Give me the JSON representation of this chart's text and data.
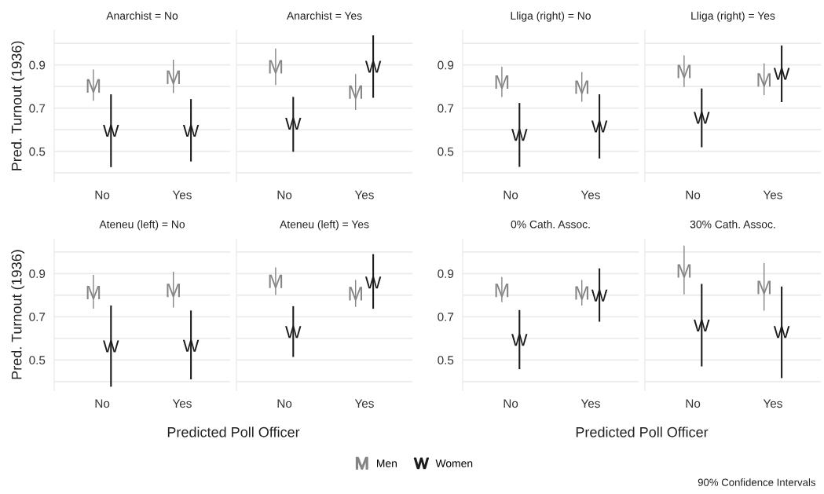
{
  "chart_data": [
    {
      "type": "scatter",
      "title": "Anarchist = No",
      "ylabel": "Pred. Turnout (1936)",
      "categories": [
        "No",
        "Yes"
      ],
      "ylim": [
        0.36,
        1.06
      ],
      "yticks": [
        {
          "value": 0.4,
          "label": null
        },
        0.5,
        {
          "value": 0.6,
          "label": null
        },
        0.7,
        {
          "value": 0.8,
          "label": null
        },
        0.9,
        {
          "value": 1.0,
          "label": null
        }
      ],
      "grid": "y",
      "legend": "bottom",
      "series": [
        {
          "name": "Men",
          "color": "#858585",
          "values": [
            0.803,
            0.843
          ],
          "errors": [
            [
              0.734,
              0.879
            ],
            [
              0.77,
              0.924
            ]
          ]
        },
        {
          "name": "Women",
          "color": "#1c1c1c",
          "values": [
            0.595,
            0.595
          ],
          "errors": [
            [
              0.427,
              0.764
            ],
            [
              0.453,
              0.742
            ]
          ]
        }
      ]
    },
    {
      "type": "scatter",
      "title": "Anarchist = Yes",
      "categories": [
        "No",
        "Yes"
      ],
      "ylim": [
        0.36,
        1.06
      ],
      "yticks": [
        {
          "value": 0.4,
          "label": null
        },
        0.5,
        {
          "value": 0.6,
          "label": null
        },
        0.7,
        {
          "value": 0.8,
          "label": null
        },
        0.9,
        {
          "value": 1.0,
          "label": null
        }
      ],
      "grid": "y",
      "tick_labels": "x",
      "series": [
        {
          "name": "Men",
          "color": "#858585",
          "values": [
            0.892,
            0.774
          ],
          "errors": [
            [
              0.807,
              0.976
            ],
            [
              0.692,
              0.858
            ]
          ]
        },
        {
          "name": "Women",
          "color": "#1c1c1c",
          "values": [
            0.628,
            0.892
          ],
          "errors": [
            [
              0.498,
              0.752
            ],
            [
              0.748,
              1.037
            ]
          ]
        }
      ]
    },
    {
      "type": "scatter",
      "title": "Lliga (right) = No",
      "categories": [
        "No",
        "Yes"
      ],
      "ylim": [
        0.36,
        1.06
      ],
      "yticks": [
        {
          "value": 0.4,
          "label": null
        },
        0.5,
        {
          "value": 0.6,
          "label": null
        },
        0.7,
        {
          "value": 0.8,
          "label": null
        },
        0.9,
        {
          "value": 1.0,
          "label": null
        }
      ],
      "grid": "y",
      "series": [
        {
          "name": "Men",
          "color": "#858585",
          "values": [
            0.821,
            0.797
          ],
          "errors": [
            [
              0.752,
              0.892
            ],
            [
              0.73,
              0.867
            ]
          ]
        },
        {
          "name": "Women",
          "color": "#1c1c1c",
          "values": [
            0.576,
            0.615
          ],
          "errors": [
            [
              0.428,
              0.724
            ],
            [
              0.467,
              0.764
            ]
          ]
        }
      ]
    },
    {
      "type": "scatter",
      "title": "Lliga (right) = Yes",
      "categories": [
        "No",
        "Yes"
      ],
      "ylim": [
        0.36,
        1.06
      ],
      "yticks": [
        {
          "value": 0.4,
          "label": null
        },
        0.5,
        {
          "value": 0.6,
          "label": null
        },
        0.7,
        {
          "value": 0.8,
          "label": null
        },
        0.9,
        {
          "value": 1.0,
          "label": null
        }
      ],
      "grid": "y",
      "tick_labels": "x",
      "series": [
        {
          "name": "Men",
          "color": "#858585",
          "values": [
            0.87,
            0.831
          ],
          "errors": [
            [
              0.798,
              0.944
            ],
            [
              0.761,
              0.907
            ]
          ]
        },
        {
          "name": "Women",
          "color": "#1c1c1c",
          "values": [
            0.655,
            0.859
          ],
          "errors": [
            [
              0.519,
              0.791
            ],
            [
              0.728,
              0.99
            ]
          ]
        }
      ]
    },
    {
      "type": "scatter",
      "title": "Ateneu (left) = No",
      "ylabel": "Pred. Turnout (1936)",
      "xlabel": "Predicted Poll Officer",
      "categories": [
        "No",
        "Yes"
      ],
      "ylim": [
        0.36,
        1.06
      ],
      "yticks": [
        {
          "value": 0.4,
          "label": null
        },
        0.5,
        {
          "value": 0.6,
          "label": null
        },
        0.7,
        {
          "value": 0.8,
          "label": null
        },
        0.9,
        {
          "value": 1.0,
          "label": null
        }
      ],
      "grid": "y",
      "series": [
        {
          "name": "Men",
          "color": "#858585",
          "values": [
            0.812,
            0.822
          ],
          "errors": [
            [
              0.737,
              0.894
            ],
            [
              0.743,
              0.908
            ]
          ]
        },
        {
          "name": "Women",
          "color": "#1c1c1c",
          "values": [
            0.563,
            0.566
          ],
          "errors": [
            [
              0.376,
              0.752
            ],
            [
              0.41,
              0.729
            ]
          ]
        }
      ]
    },
    {
      "type": "scatter",
      "title": "Ateneu (left) = Yes",
      "categories": [
        "No",
        "Yes"
      ],
      "ylim": [
        0.36,
        1.06
      ],
      "yticks": [
        {
          "value": 0.4,
          "label": null
        },
        0.5,
        {
          "value": 0.6,
          "label": null
        },
        0.7,
        {
          "value": 0.8,
          "label": null
        },
        0.9,
        {
          "value": 1.0,
          "label": null
        }
      ],
      "grid": "y",
      "tick_labels": "x",
      "series": [
        {
          "name": "Men",
          "color": "#858585",
          "values": [
            0.864,
            0.807
          ],
          "errors": [
            [
              0.801,
              0.928
            ],
            [
              0.746,
              0.87
            ]
          ]
        },
        {
          "name": "Women",
          "color": "#1c1c1c",
          "values": [
            0.629,
            0.858
          ],
          "errors": [
            [
              0.514,
              0.749
            ],
            [
              0.737,
              0.99
            ]
          ]
        }
      ]
    },
    {
      "type": "scatter",
      "title": "0% Cath. Assoc.",
      "xlabel": "Predicted Poll Officer",
      "categories": [
        "No",
        "Yes"
      ],
      "ylim": [
        0.36,
        1.06
      ],
      "yticks": [
        {
          "value": 0.4,
          "label": null
        },
        0.5,
        {
          "value": 0.6,
          "label": null
        },
        0.7,
        {
          "value": 0.8,
          "label": null
        },
        0.9,
        {
          "value": 1.0,
          "label": null
        }
      ],
      "grid": "y",
      "series": [
        {
          "name": "Men",
          "color": "#858585",
          "values": [
            0.822,
            0.81
          ],
          "errors": [
            [
              0.767,
              0.884
            ],
            [
              0.752,
              0.87
            ]
          ]
        },
        {
          "name": "Women",
          "color": "#1c1c1c",
          "values": [
            0.593,
            0.798
          ],
          "errors": [
            [
              0.457,
              0.731
            ],
            [
              0.677,
              0.924
            ]
          ]
        }
      ]
    },
    {
      "type": "scatter",
      "title": "30% Cath. Assoc.",
      "categories": [
        "No",
        "Yes"
      ],
      "ylim": [
        0.36,
        1.06
      ],
      "yticks": [
        {
          "value": 0.4,
          "label": null
        },
        0.5,
        {
          "value": 0.6,
          "label": null
        },
        0.7,
        {
          "value": 0.8,
          "label": null
        },
        0.9,
        {
          "value": 1.0,
          "label": null
        }
      ],
      "grid": "y",
      "tick_labels": "x",
      "annotations": [
        "90% Confidence Intervals"
      ],
      "series": [
        {
          "name": "Men",
          "color": "#858585",
          "values": [
            0.912,
            0.836
          ],
          "errors": [
            [
              0.804,
              1.029
            ],
            [
              0.728,
              0.948
            ]
          ]
        },
        {
          "name": "Women",
          "color": "#1c1c1c",
          "values": [
            0.659,
            0.629
          ],
          "errors": [
            [
              0.47,
              0.852
            ],
            [
              0.416,
              0.84
            ]
          ]
        }
      ]
    }
  ]
}
